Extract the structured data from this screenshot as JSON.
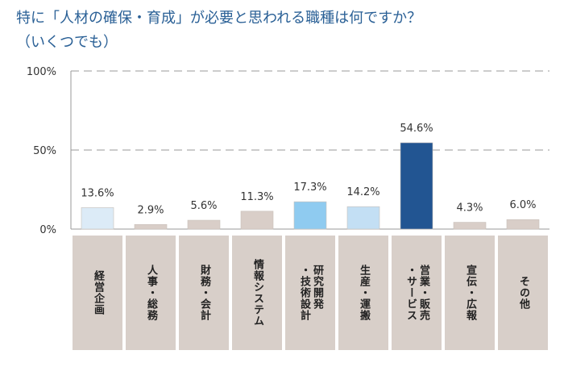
{
  "page": {
    "title_line1": "特に「人材の確保・育成」が必要と思われる職種は何ですか？",
    "title_line2": "（いくつでも）"
  },
  "colors": {
    "title": "#2a6096",
    "grid": "#999999",
    "axis_box": "#d8cfc9",
    "bar_default": "#d9cec8",
    "bar_light_blue": "#dcebf7",
    "bar_mid_blue": "#c3dff4",
    "bar_sky_blue": "#8fcbf0",
    "bar_navy": "#225592"
  },
  "chart_data": {
    "type": "bar",
    "title": "特に「人材の確保・育成」が必要と思われる職種は何ですか？（いくつでも）",
    "categories": [
      "経営企画",
      "人事・総務",
      "財務・会計",
      "情報システム",
      "研究開発\n・技術設計",
      "生産・運搬",
      "営業・販売\n・サービス",
      "宣伝・広報",
      "その他"
    ],
    "values": [
      13.6,
      2.9,
      5.6,
      11.3,
      17.3,
      14.2,
      54.6,
      4.3,
      6.0
    ],
    "value_labels": [
      "13.6%",
      "2.9%",
      "5.6%",
      "11.3%",
      "17.3%",
      "14.2%",
      "54.6%",
      "4.3%",
      "6.0%"
    ],
    "bar_colors": [
      "#dcebf7",
      "#d9cec8",
      "#d9cec8",
      "#d9cec8",
      "#8fcbf0",
      "#c3dff4",
      "#225592",
      "#d9cec8",
      "#d9cec8"
    ],
    "ylim": [
      0,
      100
    ],
    "yticks": [
      0,
      50,
      100
    ],
    "ytick_labels": [
      "0%",
      "50%",
      "100%"
    ],
    "xlabel": "",
    "ylabel": "",
    "grid": true
  }
}
